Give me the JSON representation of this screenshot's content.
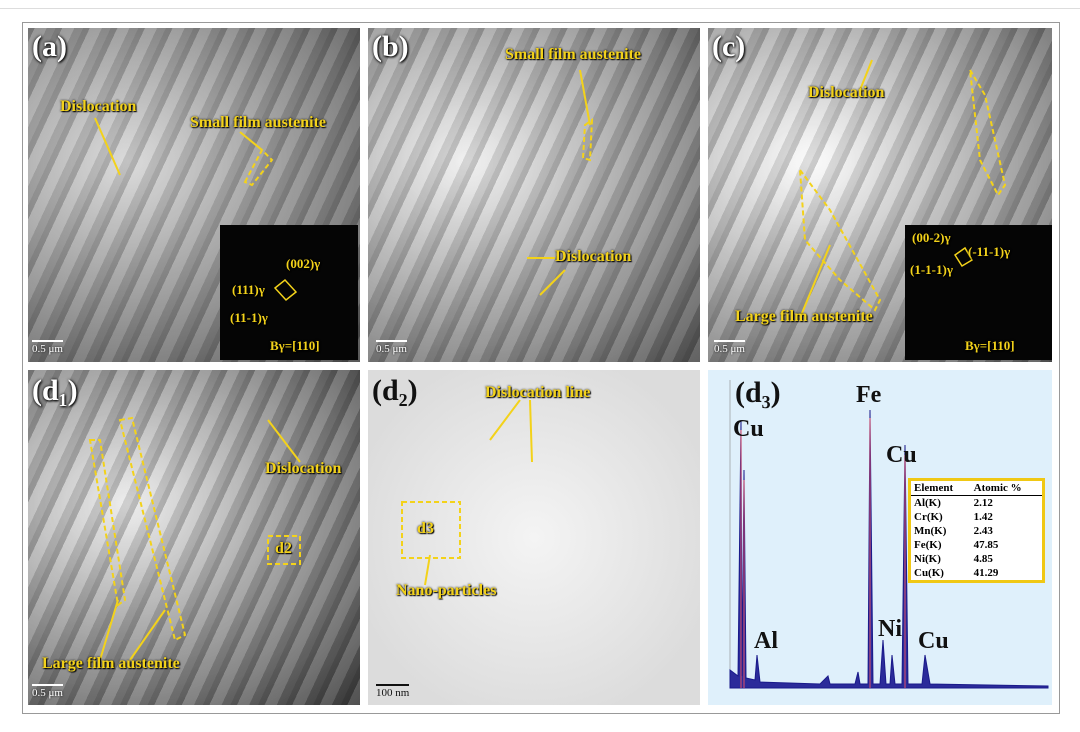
{
  "panels": [
    {
      "label": "(a)",
      "annotations": [
        "Dislocation",
        "Small film austenite"
      ],
      "scale": "0.5 μm",
      "diffraction": [
        "(111)γ",
        "(002)γ",
        "(11-1)γ",
        "Bγ=[110]"
      ]
    },
    {
      "label": "(b)",
      "annotations": [
        "Small film austenite",
        "Dislocation"
      ],
      "scale": "0.5 μm"
    },
    {
      "label": "(c)",
      "annotations": [
        "Dislocation",
        "Large film austenite"
      ],
      "scale": "0.5 μm",
      "diffraction": [
        "(00-2)γ",
        "(-11-1)γ",
        "(1-1-1)γ",
        "Bγ=[110]"
      ]
    },
    {
      "label": "(d₁)",
      "annotations": [
        "Dislocation",
        "d2",
        "Large film austenite"
      ],
      "scale": "0.5 μm"
    },
    {
      "label": "(d₂)",
      "annotations": [
        "Dislocation line",
        "d3",
        "Nano-particles"
      ],
      "scale": "100 nm"
    },
    {
      "label": "(d₃)",
      "peaks": [
        "Cu",
        "Fe",
        "Cu",
        "Al",
        "Ni",
        "Cu"
      ],
      "table": {
        "header": [
          "Element",
          "Atomic %"
        ],
        "rows": [
          [
            "Al(K)",
            "2.12"
          ],
          [
            "Cr(K)",
            "1.42"
          ],
          [
            "Mn(K)",
            "2.43"
          ],
          [
            "Fe(K)",
            "47.85"
          ],
          [
            "Ni(K)",
            "4.85"
          ],
          [
            "Cu(K)",
            "41.29"
          ]
        ]
      }
    }
  ]
}
